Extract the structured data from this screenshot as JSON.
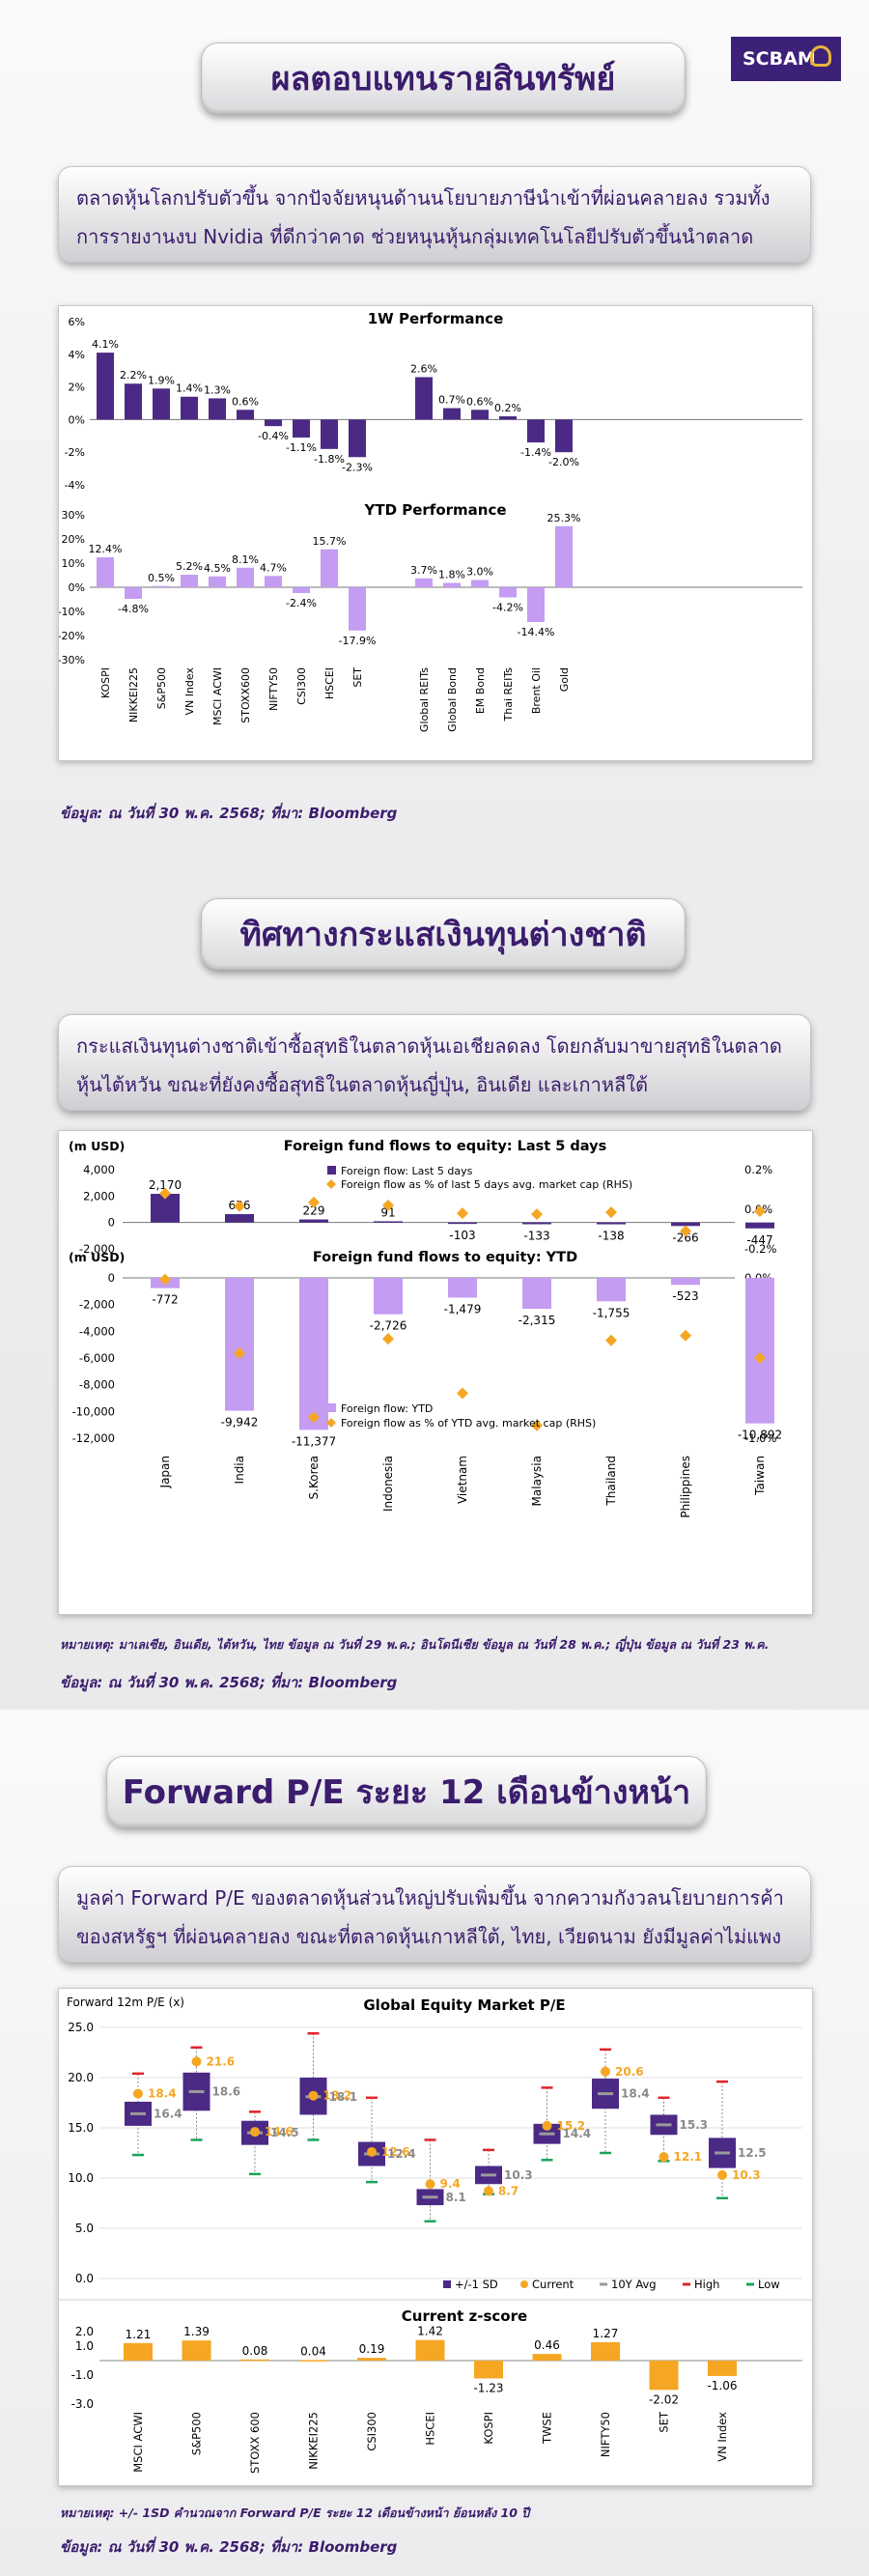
{
  "brand": {
    "logo_text": "SCBAM"
  },
  "section1": {
    "title": "ผลตอบแทนรายสินทรัพย์",
    "desc": "ตลาดหุ้นโลกปรับตัวขึ้น จากปัจจัยหนุนด้านนโยบายภาษีนำเข้าที่ผ่อนคลายลง รวมทั้งการรายงานงบ Nvidia ที่ดีกว่าคาด ช่วยหนุนหุ้นกลุ่มเทคโนโลยีปรับตัวขึ้นนำตลาด",
    "source": "ข้อมูล: ณ วันที่ 30 พ.ค. 2568; ที่มา: Bloomberg"
  },
  "section2": {
    "title": "ทิศทางกระแสเงินทุนต่างชาติ",
    "desc": "กระแสเงินทุนต่างชาติเข้าซื้อสุทธิในตลาดหุ้นเอเชียลดลง โดยกลับมาขายสุทธิในตลาดหุ้นไต้หวัน ขณะที่ยังคงซื้อสุทธิในตลาดหุ้นญี่ปุ่น, อินเดีย และเกาหลีใต้",
    "note": "หมายเหตุ: มาเลเซีย, อินเดีย, ไต้หวัน, ไทย ข้อมูล ณ วันที่ 29 พ.ค.; อินโดนีเซีย ข้อมูล ณ วันที่ 28 พ.ค.; ญี่ปุ่น ข้อมูล ณ วันที่ 23 พ.ค.",
    "source": "ข้อมูล: ณ วันที่ 30 พ.ค. 2568; ที่มา: Bloomberg"
  },
  "section3": {
    "title": "Forward P/E ระยะ 12 เดือนข้างหน้า",
    "desc": "มูลค่า Forward P/E ของตลาดหุ้นส่วนใหญ่ปรับเพิ่มขึ้น จากความกังวลนโยบายการค้าของสหรัฐฯ ที่ผ่อนคลายลง ขณะที่ตลาดหุ้นเกาหลีใต้, ไทย, เวียดนาม ยังมีมูลค่าไม่แพง",
    "note": "หมายเหตุ: +/- 1SD คำนวณจาก Forward P/E ระยะ 12 เดือนข้างหน้า ย้อนหลัง 10 ปี",
    "source": "ข้อมูล: ณ วันที่ 30 พ.ค. 2568; ที่มา: Bloomberg"
  },
  "chart_data": [
    {
      "type": "bar",
      "title": "1W Performance",
      "categories": [
        "KOSPI",
        "NIKKEI225",
        "S&P500",
        "VN Index",
        "MSCI ACWI",
        "STOXX600",
        "NIFTY50",
        "CSI300",
        "HSCEI",
        "SET",
        "Global REITs",
        "Global Bond",
        "EM Bond",
        "Thai REITs",
        "Brent Oil",
        "Gold"
      ],
      "values": [
        4.1,
        2.2,
        1.9,
        1.4,
        1.3,
        0.6,
        -0.4,
        -1.1,
        -1.8,
        -2.3,
        2.6,
        0.7,
        0.6,
        0.2,
        -1.4,
        -2.0
      ],
      "value_labels": [
        "4.1%",
        "2.2%",
        "1.9%",
        "1.4%",
        "1.3%",
        "0.6%",
        "-0.4%",
        "-1.1%",
        "-1.8%",
        "-2.3%",
        "2.6%",
        "0.7%",
        "0.6%",
        "0.2%",
        "-1.4%",
        "-2.0%"
      ],
      "yticks": [
        "6%",
        "4%",
        "2%",
        "0%",
        "-2%",
        "-4%"
      ],
      "ylim": [
        -4,
        6
      ],
      "color": "#4b2a86"
    },
    {
      "type": "bar",
      "title": "YTD Performance",
      "categories": [
        "KOSPI",
        "NIKKEI225",
        "S&P500",
        "VN Index",
        "MSCI ACWI",
        "STOXX600",
        "NIFTY50",
        "CSI300",
        "HSCEI",
        "SET",
        "Global REITs",
        "Global Bond",
        "EM Bond",
        "Thai REITs",
        "Brent Oil",
        "Gold"
      ],
      "values": [
        12.4,
        -4.8,
        0.5,
        5.2,
        4.5,
        8.1,
        4.7,
        -2.4,
        15.7,
        -17.9,
        3.7,
        1.8,
        3.0,
        -4.2,
        -14.4,
        25.3
      ],
      "value_labels": [
        "12.4%",
        "-4.8%",
        "0.5%",
        "5.2%",
        "4.5%",
        "8.1%",
        "4.7%",
        "-2.4%",
        "15.7%",
        "-17.9%",
        "3.7%",
        "1.8%",
        "3.0%",
        "-4.2%",
        "-14.4%",
        "25.3%"
      ],
      "yticks": [
        "30%",
        "20%",
        "10%",
        "0%",
        "-10%",
        "-20%",
        "-30%"
      ],
      "ylim": [
        -30,
        30
      ],
      "color": "#c49cf2"
    },
    {
      "type": "bar",
      "title": "Foreign fund flows to equity: Last 5 days",
      "unit_label": "(m USD)",
      "categories": [
        "Japan",
        "India",
        "S.Korea",
        "Indonesia",
        "Vietnam",
        "Malaysia",
        "Thailand",
        "Philippines",
        "Taiwan"
      ],
      "series": [
        {
          "name": "Foreign flow: Last 5 days",
          "values": [
            2170,
            636,
            229,
            91,
            -103,
            -133,
            -138,
            -266,
            -447
          ],
          "color": "#4b2a86"
        },
        {
          "name": "Foreign flow as % of last 5 days avg. market cap (RHS)",
          "values": [
            0.08,
            0.015,
            0.035,
            0.02,
            -0.02,
            -0.025,
            -0.015,
            -0.11,
            -0.01
          ],
          "color": "#f5a623"
        }
      ],
      "value_labels": [
        "2,170",
        "636",
        "229",
        "91",
        "-103",
        "-133",
        "-138",
        "-266",
        "-447"
      ],
      "yticks": [
        "4,000",
        "2,000",
        "0",
        "-2,000"
      ],
      "ylim": [
        -2000,
        4000
      ],
      "y2ticks": [
        "0.2%",
        "0.0%",
        "-0.2%"
      ],
      "y2lim": [
        -0.2,
        0.2
      ]
    },
    {
      "type": "bar",
      "title": "Foreign fund flows to equity: YTD",
      "unit_label": "(m USD)",
      "categories": [
        "Japan",
        "India",
        "S.Korea",
        "Indonesia",
        "Vietnam",
        "Malaysia",
        "Thailand",
        "Philippines",
        "Taiwan"
      ],
      "series": [
        {
          "name": "Foreign flow: YTD",
          "values": [
            -772,
            -9942,
            -11377,
            -2726,
            -1479,
            -2315,
            -1755,
            -523,
            -10892
          ],
          "color": "#c49cf2"
        },
        {
          "name": "Foreign flow as % of YTD avg. market cap (RHS)",
          "values": [
            -0.01,
            -0.47,
            -0.87,
            -0.38,
            -0.72,
            -0.92,
            -0.39,
            -0.36,
            -0.5
          ],
          "color": "#f5a623"
        }
      ],
      "value_labels": [
        "-772",
        "-9,942",
        "-11,377",
        "-2,726",
        "-1,479",
        "-2,315",
        "-1,755",
        "-523",
        "-10,892"
      ],
      "yticks": [
        "0",
        "-2,000",
        "-4,000",
        "-6,000",
        "-8,000",
        "-10,000",
        "-12,000"
      ],
      "ylim": [
        -12000,
        0
      ],
      "y2ticks": [
        "0.0%",
        "-1.0%"
      ],
      "y2lim": [
        -1.0,
        0
      ]
    },
    {
      "type": "box",
      "title": "Global Equity Market P/E",
      "ylabel": "Forward 12m P/E (x)",
      "categories": [
        "MSCI ACWI",
        "S&P500",
        "STOXX 600",
        "NIKKEI225",
        "CSI300",
        "HSCEI",
        "KOSPI",
        "TWSE",
        "NIFTY50",
        "SET",
        "VN Index"
      ],
      "sd_low": [
        15.2,
        16.7,
        13.3,
        16.3,
        11.2,
        7.3,
        9.4,
        13.4,
        16.9,
        14.3,
        11.0
      ],
      "sd_high": [
        17.6,
        20.5,
        15.7,
        20.0,
        13.6,
        8.9,
        11.2,
        15.4,
        19.9,
        16.3,
        14.0
      ],
      "current": [
        18.4,
        21.6,
        14.6,
        18.2,
        12.6,
        9.4,
        8.7,
        15.2,
        20.6,
        12.1,
        10.3
      ],
      "current_labels": [
        "18.4",
        "21.6",
        "14.6",
        "18.2",
        "12.6",
        "9.4",
        "8.7",
        "15.2",
        "20.6",
        "12.1",
        "10.3"
      ],
      "avg_10y": [
        16.4,
        18.6,
        14.5,
        18.1,
        12.4,
        8.1,
        10.3,
        14.4,
        18.4,
        15.3,
        12.5
      ],
      "avg_labels": [
        "16.4",
        "18.6",
        "14.5",
        "18.1",
        "12.4",
        "8.1",
        "10.3",
        "14.4",
        "18.4",
        "15.3",
        "12.5"
      ],
      "high": [
        20.4,
        23.0,
        16.6,
        24.4,
        18.0,
        13.8,
        12.8,
        19.0,
        22.8,
        18.0,
        19.6
      ],
      "low": [
        12.3,
        13.8,
        10.4,
        13.8,
        9.6,
        5.7,
        8.4,
        11.8,
        12.5,
        11.7,
        8.0
      ],
      "yticks": [
        "25.0",
        "20.0",
        "15.0",
        "10.0",
        "5.0",
        "0.0"
      ],
      "ylim": [
        0,
        25
      ],
      "legend": [
        "+/-1 SD",
        "Current",
        "10Y Avg",
        "High",
        "Low"
      ],
      "colors": {
        "sd": "#4b2a86",
        "current": "#f5a623",
        "avg": "#9a9a9a",
        "high": "#e0242b",
        "low": "#1aa35a"
      }
    },
    {
      "type": "bar",
      "title": "Current z-score",
      "categories": [
        "MSCI ACWI",
        "S&P500",
        "STOXX 600",
        "NIKKEI225",
        "CSI300",
        "HSCEI",
        "KOSPI",
        "TWSE",
        "NIFTY50",
        "SET",
        "VN Index"
      ],
      "values": [
        1.21,
        1.39,
        0.08,
        0.04,
        0.19,
        1.42,
        -1.23,
        0.46,
        1.27,
        -2.02,
        -1.06
      ],
      "value_labels": [
        "1.21",
        "1.39",
        "0.08",
        "0.04",
        "0.19",
        "1.42",
        "-1.23",
        "0.46",
        "1.27",
        "-2.02",
        "-1.06"
      ],
      "yticks": [
        "2.0",
        "1.0",
        "-1.0",
        "-3.0"
      ],
      "ylim": [
        -3,
        2
      ],
      "color": "#f5a623"
    }
  ]
}
